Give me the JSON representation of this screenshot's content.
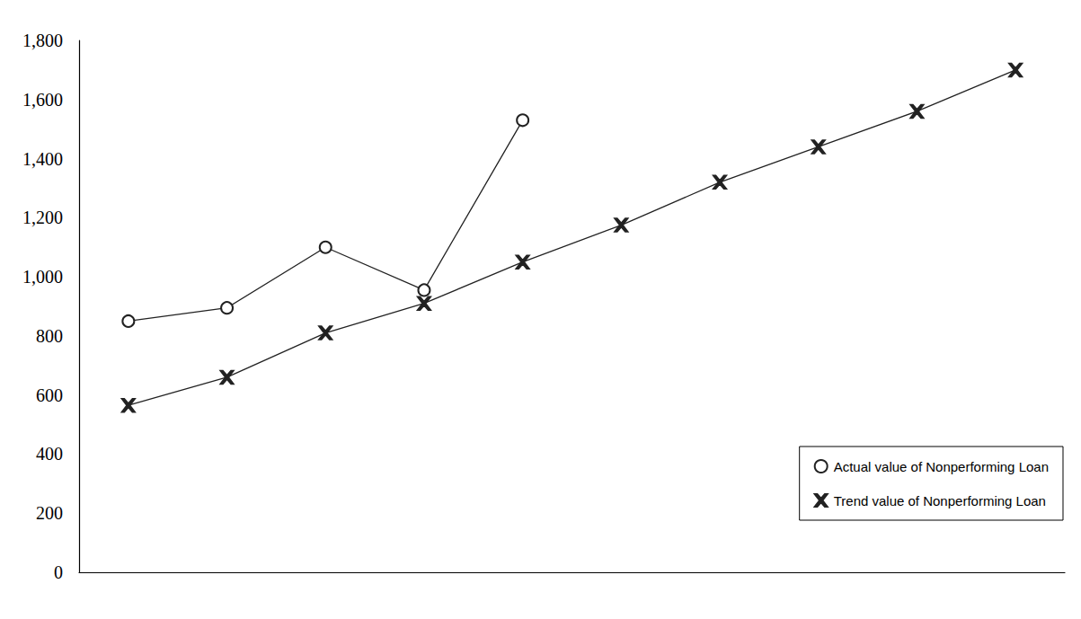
{
  "chart_data": {
    "type": "line",
    "categories": [
      null,
      null,
      null,
      null,
      null,
      null,
      null,
      null,
      null,
      null
    ],
    "series": [
      {
        "name": "Actual value of Nonperforming Loan",
        "color": "#222222",
        "marker": "circle",
        "values": [
          850,
          895,
          1100,
          955,
          1530,
          null,
          null,
          null,
          null,
          null
        ]
      },
      {
        "name": "Trend value of Nonperforming Loan",
        "color": "#222222",
        "marker": "x",
        "values": [
          565,
          660,
          810,
          910,
          1050,
          1175,
          1320,
          1440,
          1560,
          1700
        ]
      }
    ],
    "ylim": [
      0,
      1800
    ],
    "yticks": [
      0,
      200,
      400,
      600,
      800,
      1000,
      1200,
      1400,
      1600,
      1800
    ],
    "grid": false,
    "legend": "lower right",
    "tick_labels": "y"
  }
}
